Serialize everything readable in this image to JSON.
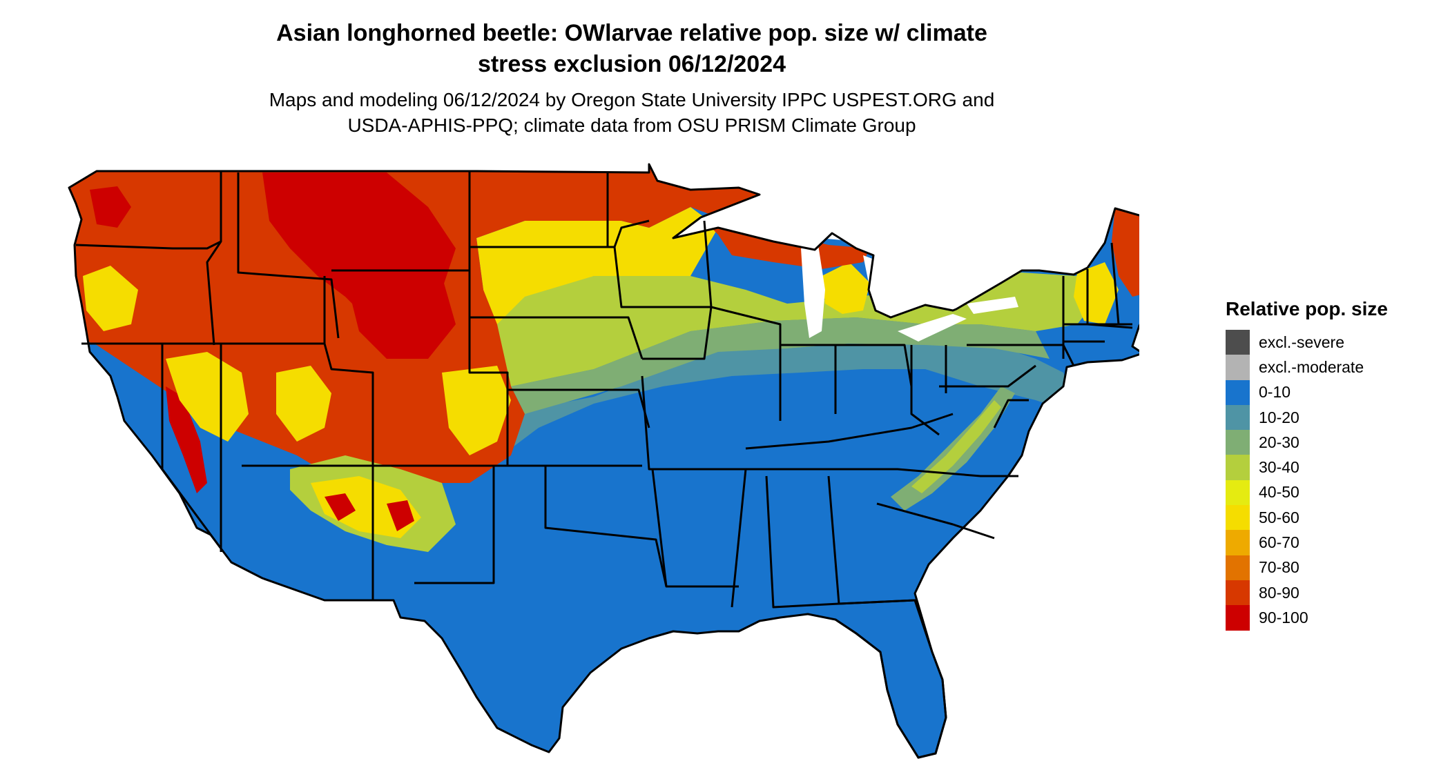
{
  "title": {
    "line1": "Asian longhorned beetle: OWlarvae relative pop. size w/ climate",
    "line2": "stress exclusion 06/12/2024"
  },
  "subtitle": {
    "line1": "Maps and modeling 06/12/2024 by Oregon State University IPPC USPEST.ORG and",
    "line2": "USDA-APHIS-PPQ; climate data from OSU PRISM Climate Group"
  },
  "legend": {
    "title": "Relative pop. size",
    "items": [
      {
        "label": "excl.-severe",
        "color": "#4d4d4d"
      },
      {
        "label": "excl.-moderate",
        "color": "#b3b3b3"
      },
      {
        "label": "0-10",
        "color": "#1874cd"
      },
      {
        "label": "10-20",
        "color": "#4f94a5"
      },
      {
        "label": "20-30",
        "color": "#7fae74"
      },
      {
        "label": "30-40",
        "color": "#b4cf3d"
      },
      {
        "label": "40-50",
        "color": "#e5eb11"
      },
      {
        "label": "50-60",
        "color": "#f5dd00"
      },
      {
        "label": "60-70",
        "color": "#eeaa00"
      },
      {
        "label": "70-80",
        "color": "#e27300"
      },
      {
        "label": "80-90",
        "color": "#d73800"
      },
      {
        "label": "90-100",
        "color": "#cd0000"
      }
    ]
  },
  "map": {
    "region": "contiguous-united-states",
    "boundary_color": "#000000"
  }
}
